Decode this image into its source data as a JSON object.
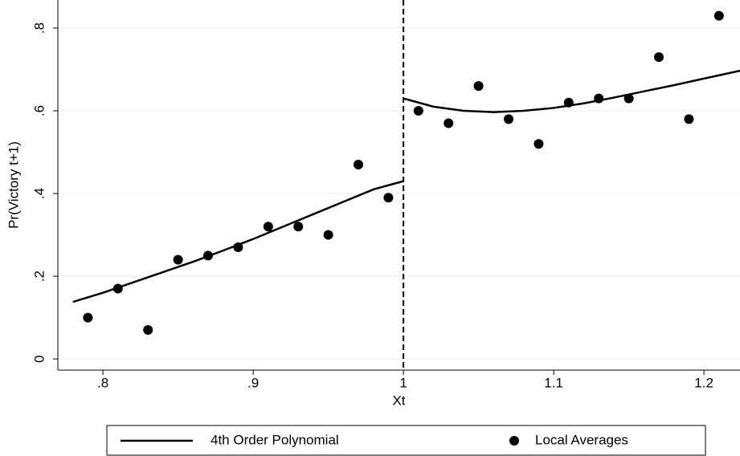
{
  "chart_data": {
    "type": "scatter",
    "xlabel": "Xt",
    "ylabel": "Pr(Victory t+1)",
    "xlim": [
      0.77,
      1.224
    ],
    "ylim": [
      -0.027,
      0.868
    ],
    "xticks": [
      {
        "value": 0.8,
        "label": ".8"
      },
      {
        "value": 0.9,
        "label": ".9"
      },
      1,
      1.1,
      1.2
    ],
    "yticks": [
      0,
      {
        "value": 0.2,
        "label": ".2"
      },
      {
        "value": 0.4,
        "label": ".4"
      },
      {
        "value": 0.6,
        "label": ".6"
      },
      {
        "value": 0.8,
        "label": ".8"
      }
    ],
    "grid": true,
    "cutoff": 1,
    "series": [
      {
        "name": "4th Order Polynomial",
        "mode": "lines",
        "color": "#000000",
        "x": [
          0.78,
          0.8,
          0.82,
          0.84,
          0.86,
          0.88,
          0.9,
          0.92,
          0.94,
          0.96,
          0.98,
          1.0,
          1.0,
          1.0,
          1.02,
          1.04,
          1.06,
          1.08,
          1.1,
          1.12,
          1.14,
          1.16,
          1.18,
          1.2,
          1.224
        ],
        "values": [
          0.138,
          0.16,
          0.185,
          0.21,
          0.235,
          0.262,
          0.29,
          0.32,
          0.35,
          0.38,
          0.41,
          0.43,
          null,
          0.63,
          0.61,
          0.6,
          0.597,
          0.6,
          0.607,
          0.618,
          0.632,
          0.647,
          0.662,
          0.678,
          0.697
        ]
      },
      {
        "name": "Local Averages",
        "mode": "markers",
        "color": "#000000",
        "x": [
          0.79,
          0.81,
          0.83,
          0.85,
          0.87,
          0.89,
          0.91,
          0.93,
          0.95,
          0.97,
          0.99,
          1.01,
          1.03,
          1.05,
          1.07,
          1.09,
          1.11,
          1.13,
          1.15,
          1.17,
          1.19,
          1.21
        ],
        "values": [
          0.1,
          0.17,
          0.07,
          0.24,
          0.25,
          0.27,
          0.32,
          0.32,
          0.3,
          0.47,
          0.39,
          0.6,
          0.57,
          0.66,
          0.58,
          0.52,
          0.62,
          0.63,
          0.63,
          0.73,
          0.58,
          0.83
        ]
      }
    ]
  }
}
